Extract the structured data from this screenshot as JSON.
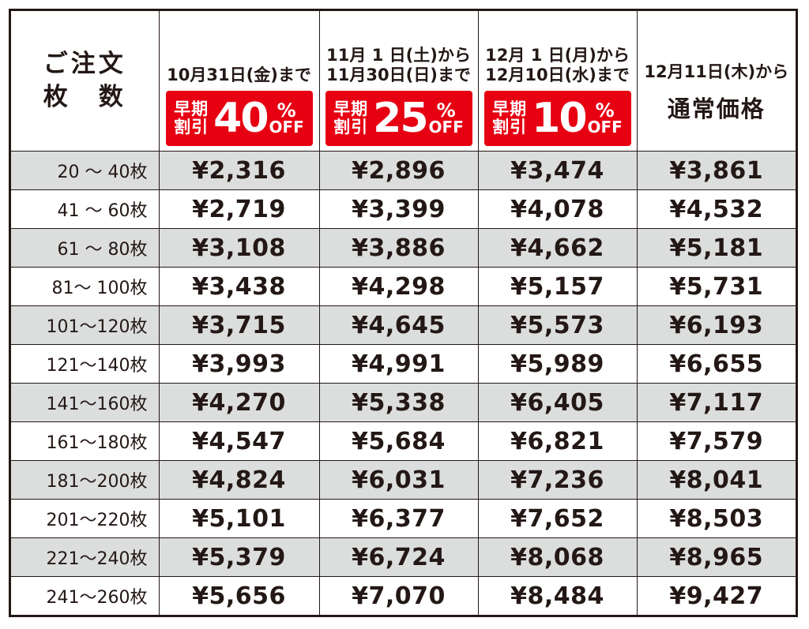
{
  "header": {
    "quantity_label_line1": "ご注文",
    "quantity_label_line2": "枚　数",
    "columns": [
      {
        "date_line1": "10月31日(金)まで",
        "date_line2": "",
        "badge_label_line1": "早期",
        "badge_label_line2": "割引",
        "badge_percent_number": "40",
        "badge_percent_sign": "%",
        "badge_off": "OFF"
      },
      {
        "date_line1": "11月 1 日(土)から",
        "date_line2": "11月30日(日)まで",
        "badge_label_line1": "早期",
        "badge_label_line2": "割引",
        "badge_percent_number": "25",
        "badge_percent_sign": "%",
        "badge_off": "OFF"
      },
      {
        "date_line1": "12月 1 日(月)から",
        "date_line2": "12月10日(水)まで",
        "badge_label_line1": "早期",
        "badge_label_line2": "割引",
        "badge_percent_number": "10",
        "badge_percent_sign": "%",
        "badge_off": "OFF"
      }
    ],
    "regular": {
      "date_line": "12月11日(木)から",
      "title": "通常価格"
    }
  },
  "rows": [
    {
      "range": "20 ～ 40枚",
      "prices": [
        "¥2,316",
        "¥2,896",
        "¥3,474",
        "¥3,861"
      ]
    },
    {
      "range": "41 ～ 60枚",
      "prices": [
        "¥2,719",
        "¥3,399",
        "¥4,078",
        "¥4,532"
      ]
    },
    {
      "range": "61 ～ 80枚",
      "prices": [
        "¥3,108",
        "¥3,886",
        "¥4,662",
        "¥5,181"
      ]
    },
    {
      "range": "81～ 100枚",
      "prices": [
        "¥3,438",
        "¥4,298",
        "¥5,157",
        "¥5,731"
      ]
    },
    {
      "range": "101～120枚",
      "prices": [
        "¥3,715",
        "¥4,645",
        "¥5,573",
        "¥6,193"
      ]
    },
    {
      "range": "121～140枚",
      "prices": [
        "¥3,993",
        "¥4,991",
        "¥5,989",
        "¥6,655"
      ]
    },
    {
      "range": "141～160枚",
      "prices": [
        "¥4,270",
        "¥5,338",
        "¥6,405",
        "¥7,117"
      ]
    },
    {
      "range": "161～180枚",
      "prices": [
        "¥4,547",
        "¥5,684",
        "¥6,821",
        "¥7,579"
      ]
    },
    {
      "range": "181～200枚",
      "prices": [
        "¥4,824",
        "¥6,031",
        "¥7,236",
        "¥8,041"
      ]
    },
    {
      "range": "201～220枚",
      "prices": [
        "¥5,101",
        "¥6,377",
        "¥7,652",
        "¥8,503"
      ]
    },
    {
      "range": "221～240枚",
      "prices": [
        "¥5,379",
        "¥6,724",
        "¥8,068",
        "¥8,965"
      ]
    },
    {
      "range": "241～260枚",
      "prices": [
        "¥5,656",
        "¥7,070",
        "¥8,484",
        "¥9,427"
      ]
    }
  ],
  "colors": {
    "badge_red": "#e60012",
    "row_shade": "#dcdddd",
    "ink": "#231815"
  }
}
